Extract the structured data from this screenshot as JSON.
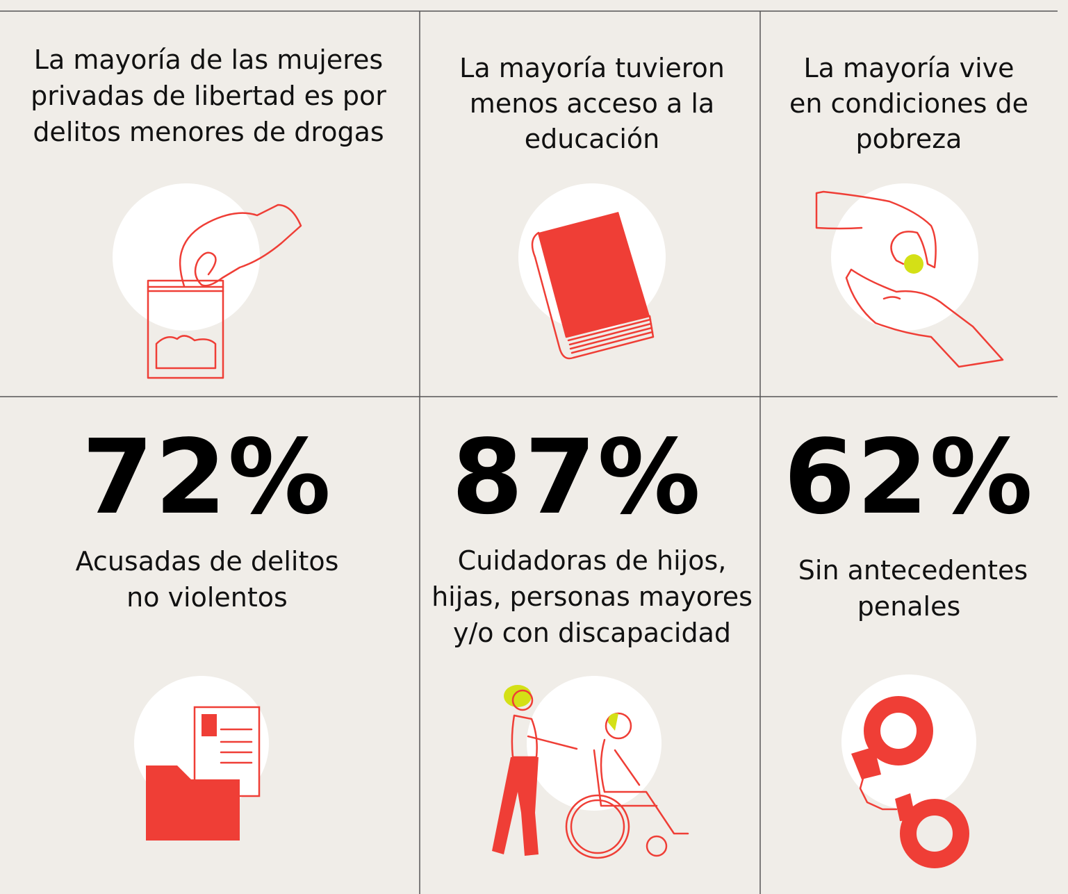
{
  "cells": [
    {
      "heading": [
        "La mayoría de las mujeres",
        "privadas de libertad es por",
        "delitos menores de drogas"
      ],
      "stat": "72%",
      "caption": [
        "Acusadas de delitos",
        "no violentos"
      ]
    },
    {
      "heading": [
        "La mayoría tuvieron",
        "menos acceso a la",
        "educación"
      ],
      "stat": "87%",
      "caption": [
        "Cuidadoras de hijos,",
        "hijas, personas mayores",
        "y/o con discapacidad"
      ]
    },
    {
      "heading": [
        "La mayoría vive",
        "en condiciones de",
        "pobreza"
      ],
      "stat": "62%",
      "caption": [
        "Sin antecedentes",
        "penales"
      ]
    }
  ]
}
